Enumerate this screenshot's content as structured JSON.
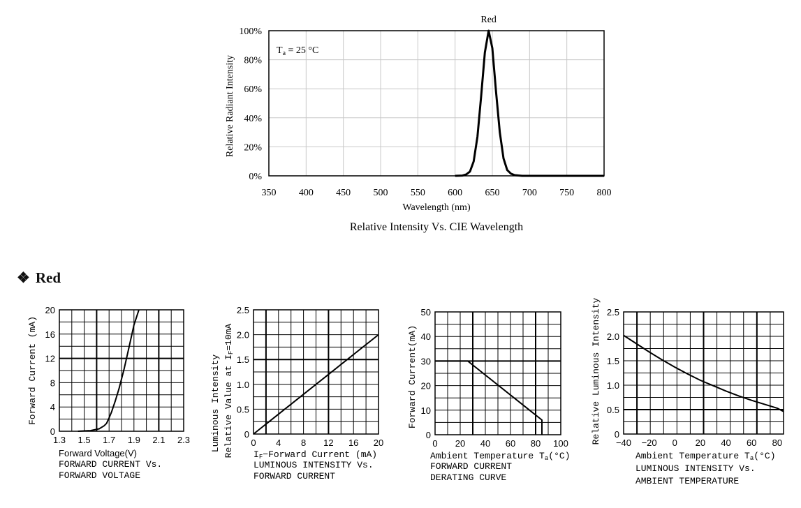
{
  "section": {
    "icon": "❖",
    "label": "Red"
  },
  "colors": {
    "ink": "#000000",
    "minor_grid": "#c8c8c8",
    "background": "#ffffff"
  },
  "chart_data": [
    {
      "id": "spectrum",
      "type": "line",
      "title": "Relative Intensity Vs. CIE Wavelength",
      "series_label": "Red",
      "annotation": {
        "symbol": "T",
        "sub": "a",
        "rest": " = 25 °C"
      },
      "xlabel": "Wavelength (nm)",
      "ylabel": "Relative  Radiant  Intensity",
      "xlim": [
        350,
        800
      ],
      "ylim": [
        0,
        100
      ],
      "xticks": [
        "350",
        "400",
        "450",
        "500",
        "550",
        "600",
        "650",
        "700",
        "750",
        "800"
      ],
      "yticks": [
        "0%",
        "20%",
        "40%",
        "60%",
        "80%",
        "100%"
      ],
      "grid": true,
      "series": [
        {
          "x": [
            600,
            610,
            615,
            620,
            625,
            630,
            635,
            640,
            645,
            650,
            655,
            660,
            665,
            670,
            675,
            680,
            690,
            700,
            800
          ],
          "y": [
            0,
            0.2,
            1,
            3,
            10,
            27,
            55,
            85,
            100,
            88,
            58,
            30,
            12,
            4,
            1.5,
            0.5,
            0,
            0,
            0
          ]
        }
      ]
    },
    {
      "id": "iv",
      "type": "line",
      "xlabel": "Forward  Voltage(V)",
      "caption": [
        "FORWARD  CURRENT  Vs.",
        "FORWARD  VOLTAGE"
      ],
      "ylabel": "Forward  Current  (mA)",
      "xlim": [
        1.3,
        2.3
      ],
      "ylim": [
        0,
        20
      ],
      "xticks": [
        "1.3",
        "1.5",
        "1.7",
        "1.9",
        "2.1",
        "2.3"
      ],
      "yticks": [
        "0",
        "4",
        "8",
        "12",
        "16",
        "20"
      ],
      "grid": true,
      "series": [
        {
          "x": [
            1.45,
            1.55,
            1.62,
            1.66,
            1.68,
            1.7,
            1.72,
            1.75,
            1.78,
            1.82,
            1.86,
            1.9,
            1.94
          ],
          "y": [
            0,
            0.1,
            0.4,
            0.9,
            1.3,
            2.2,
            3.2,
            5.0,
            7.0,
            10.2,
            13.8,
            17.5,
            20
          ]
        }
      ]
    },
    {
      "id": "lum_current",
      "type": "line",
      "xlabel_parts": {
        "pre": "I",
        "sub": "F",
        "post": "−Forward  Current  (mA)"
      },
      "caption": [
        "LUMINOUS  INTENSITY  Vs.",
        "FORWARD  CURRENT"
      ],
      "ylabel_lines": [
        "Luminous  Intensity"
      ],
      "ylabel2_parts": {
        "pre": "Relative  Value  at  I",
        "sub": "F",
        "post": "=10mA"
      },
      "xlim": [
        0,
        20
      ],
      "ylim": [
        0,
        2.5
      ],
      "xticks": [
        "0",
        "4",
        "8",
        "12",
        "16",
        "20"
      ],
      "yticks": [
        "0",
        "0.5",
        "1.0",
        "1.5",
        "2.0",
        "2.5"
      ],
      "grid": true,
      "series": [
        {
          "x": [
            0,
            20
          ],
          "y": [
            0,
            2.0
          ]
        }
      ]
    },
    {
      "id": "derating",
      "type": "line",
      "xlabel_parts": {
        "pre": "Ambient  Temperature  T",
        "sub": "a",
        "post": "(°C)"
      },
      "caption": [
        "FORWARD  CURRENT",
        "DERATING  CURVE"
      ],
      "ylabel": "Forward  Current(mA)",
      "xlim": [
        0,
        100
      ],
      "ylim": [
        0,
        50
      ],
      "xticks": [
        "0",
        "20",
        "40",
        "60",
        "80",
        "100"
      ],
      "yticks": [
        "0",
        "10",
        "20",
        "30",
        "40",
        "50"
      ],
      "grid": true,
      "series": [
        {
          "x": [
            0,
            26,
            85,
            85
          ],
          "y": [
            30,
            30,
            6,
            0
          ]
        }
      ]
    },
    {
      "id": "lum_temp",
      "type": "line",
      "xlabel_parts": {
        "pre": "Ambient  Temperature  T",
        "sub": "a",
        "post": "(°C)"
      },
      "caption": [
        "LUMINOUS  INTENSITY  Vs.",
        "AMBIENT  TEMPERATURE"
      ],
      "ylabel": "Relative  Luminous  Intensity",
      "xlim": [
        -40,
        85
      ],
      "ylim": [
        0,
        2.5
      ],
      "xticks": [
        "−40",
        "−20",
        "0",
        "20",
        "40",
        "60",
        "80"
      ],
      "yticks": [
        "0",
        "0.5",
        "1.0",
        "1.5",
        "2.0",
        "2.5"
      ],
      "grid": true,
      "series": [
        {
          "x": [
            -40,
            -30,
            -20,
            -10,
            0,
            10,
            20,
            30,
            40,
            50,
            60,
            70,
            80,
            85
          ],
          "y": [
            2.02,
            1.85,
            1.68,
            1.52,
            1.37,
            1.23,
            1.1,
            0.99,
            0.88,
            0.78,
            0.69,
            0.61,
            0.53,
            0.46
          ]
        }
      ]
    }
  ]
}
